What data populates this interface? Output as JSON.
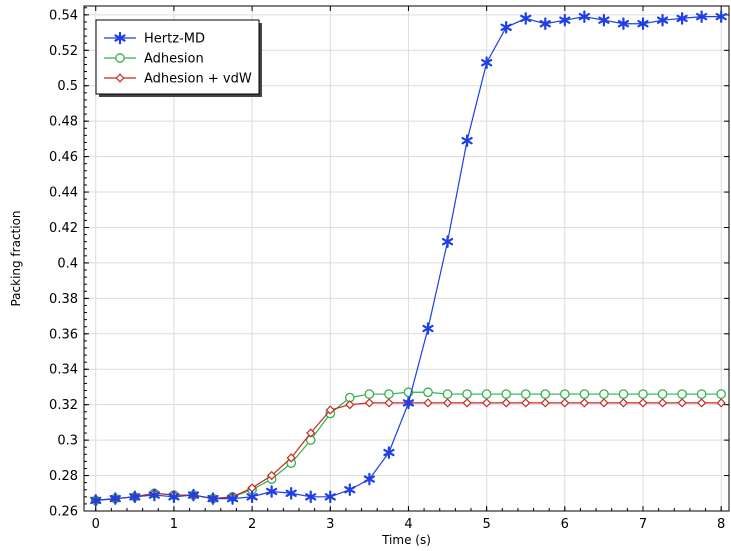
{
  "chart_data": {
    "type": "line",
    "title": "",
    "xlabel": "Time (s)",
    "ylabel": "Packing fraction",
    "xlim": [
      -0.15,
      8.1
    ],
    "ylim": [
      0.26,
      0.545
    ],
    "xticks": [
      "0",
      "1",
      "2",
      "3",
      "4",
      "5",
      "6",
      "7",
      "8"
    ],
    "yticks": [
      "0.26",
      "0.28",
      "0.3",
      "0.32",
      "0.34",
      "0.36",
      "0.38",
      "0.4",
      "0.42",
      "0.44",
      "0.46",
      "0.48",
      "0.5",
      "0.52",
      "0.54"
    ],
    "grid": true,
    "legend_position": "top-left",
    "x": [
      0,
      0.25,
      0.5,
      0.75,
      1,
      1.25,
      1.5,
      1.75,
      2,
      2.25,
      2.5,
      2.75,
      3,
      3.25,
      3.5,
      3.75,
      4,
      4.25,
      4.5,
      4.75,
      5,
      5.25,
      5.5,
      5.75,
      6,
      6.25,
      6.5,
      6.75,
      7,
      7.25,
      7.5,
      7.75,
      8
    ],
    "series": [
      {
        "name": "Hertz-MD",
        "color": "#1f3fe6",
        "marker": "asterisk",
        "values": [
          0.266,
          0.267,
          0.268,
          0.269,
          0.268,
          0.269,
          0.267,
          0.267,
          0.268,
          0.271,
          0.27,
          0.268,
          0.268,
          0.272,
          0.278,
          0.293,
          0.321,
          0.363,
          0.412,
          0.469,
          0.513,
          0.533,
          0.538,
          0.535,
          0.537,
          0.539,
          0.537,
          0.535,
          0.535,
          0.537,
          0.538,
          0.539,
          0.539
        ]
      },
      {
        "name": "Adhesion",
        "color": "#2db34a",
        "marker": "circle",
        "values": [
          0.266,
          0.267,
          0.268,
          0.27,
          0.269,
          0.269,
          0.267,
          0.268,
          0.272,
          0.278,
          0.287,
          0.3,
          0.315,
          0.324,
          0.326,
          0.326,
          0.327,
          0.327,
          0.326,
          0.326,
          0.326,
          0.326,
          0.326,
          0.326,
          0.326,
          0.326,
          0.326,
          0.326,
          0.326,
          0.326,
          0.326,
          0.326,
          0.326
        ]
      },
      {
        "name": "Adhesion + vdW",
        "color": "#c8281e",
        "marker": "diamond",
        "values": [
          0.266,
          0.267,
          0.268,
          0.27,
          0.269,
          0.269,
          0.267,
          0.268,
          0.273,
          0.28,
          0.29,
          0.304,
          0.317,
          0.32,
          0.321,
          0.321,
          0.321,
          0.321,
          0.321,
          0.321,
          0.321,
          0.321,
          0.321,
          0.321,
          0.321,
          0.321,
          0.321,
          0.321,
          0.321,
          0.321,
          0.321,
          0.321,
          0.321
        ]
      }
    ]
  }
}
